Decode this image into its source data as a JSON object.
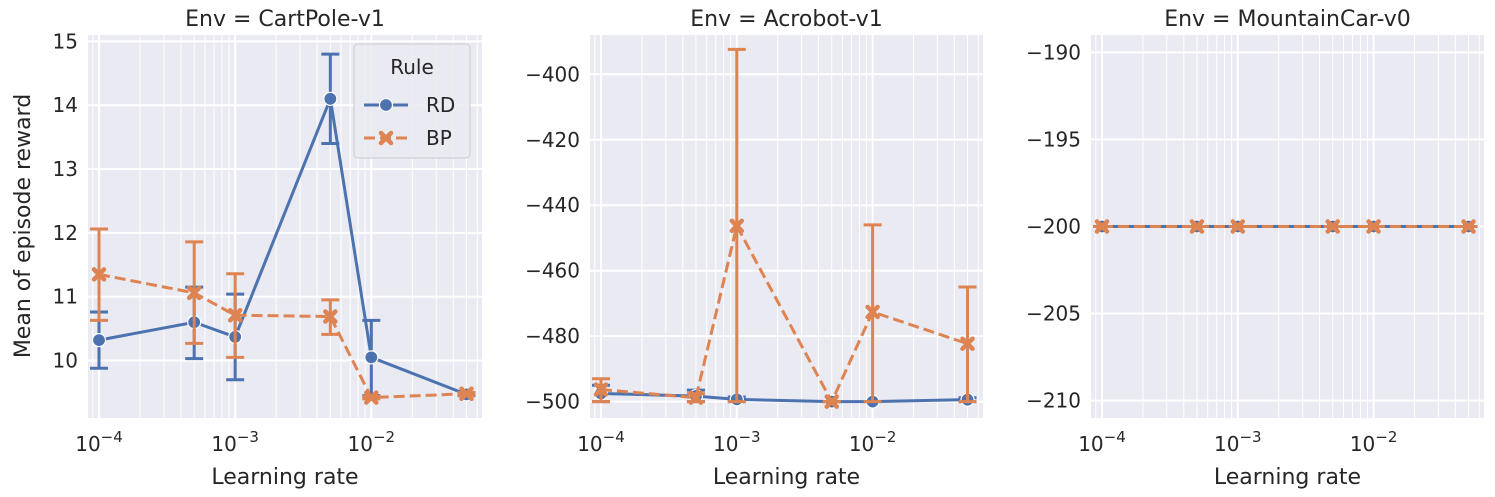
{
  "figure": {
    "ylabel": "Mean of episode reward",
    "xlabel": "Learning rate"
  },
  "legend": {
    "title": "Rule",
    "placement": "upper-right of first panel",
    "entries": [
      {
        "name": "RD",
        "color": "#4c72b0",
        "marker": "circle",
        "linestyle": "solid"
      },
      {
        "name": "BP",
        "color": "#dd8452",
        "marker": "x",
        "linestyle": "dashed"
      }
    ]
  },
  "chart_data": [
    {
      "type": "line",
      "title": "Env = CartPole-v1",
      "xlabel": "Learning rate",
      "ylabel": "Mean of episode reward",
      "xscale": "log",
      "xlim": [
        8.3e-05,
        0.065
      ],
      "ylim": [
        9.1,
        15.1
      ],
      "xticks": [
        {
          "value": 0.0001,
          "base": "10",
          "exp": "−4"
        },
        {
          "value": 0.001,
          "base": "10",
          "exp": "−3"
        },
        {
          "value": 0.01,
          "base": "10",
          "exp": "−2"
        }
      ],
      "yticks": [
        {
          "value": 10,
          "label": "10"
        },
        {
          "value": 11,
          "label": "11"
        },
        {
          "value": 12,
          "label": "12"
        },
        {
          "value": 13,
          "label": "13"
        },
        {
          "value": 14,
          "label": "14"
        },
        {
          "value": 15,
          "label": "15"
        }
      ],
      "grid": true,
      "series": [
        {
          "name": "RD",
          "x": [
            0.0001,
            0.0005,
            0.001,
            0.005,
            0.01,
            0.05
          ],
          "y": [
            10.32,
            10.6,
            10.37,
            14.1,
            10.05,
            9.47
          ],
          "err_low": [
            9.88,
            10.03,
            9.7,
            13.4,
            9.45,
            9.45
          ],
          "err_high": [
            10.76,
            11.15,
            11.04,
            14.8,
            10.63,
            9.49
          ]
        },
        {
          "name": "BP",
          "x": [
            0.0001,
            0.0005,
            0.001,
            0.005,
            0.01,
            0.05
          ],
          "y": [
            11.35,
            11.06,
            10.71,
            10.69,
            9.42,
            9.48
          ],
          "err_low": [
            10.63,
            10.27,
            10.05,
            10.41,
            9.4,
            9.46
          ],
          "err_high": [
            12.06,
            11.86,
            11.36,
            10.95,
            9.44,
            9.5
          ]
        }
      ]
    },
    {
      "type": "line",
      "title": "Env = Acrobot-v1",
      "xlabel": "Learning rate",
      "ylabel": "",
      "xscale": "log",
      "xlim": [
        8.3e-05,
        0.065
      ],
      "ylim": [
        -505,
        -388
      ],
      "xticks": [
        {
          "value": 0.0001,
          "base": "10",
          "exp": "−4"
        },
        {
          "value": 0.001,
          "base": "10",
          "exp": "−3"
        },
        {
          "value": 0.01,
          "base": "10",
          "exp": "−2"
        }
      ],
      "yticks": [
        {
          "value": -500,
          "label": "−500"
        },
        {
          "value": -480,
          "label": "−480"
        },
        {
          "value": -460,
          "label": "−460"
        },
        {
          "value": -440,
          "label": "−440"
        },
        {
          "value": -420,
          "label": "−420"
        },
        {
          "value": -400,
          "label": "−400"
        }
      ],
      "grid": true,
      "series": [
        {
          "name": "RD",
          "x": [
            0.0001,
            0.0005,
            0.001,
            0.005,
            0.01,
            0.05
          ],
          "y": [
            -497.5,
            -498.3,
            -499.3,
            -500,
            -500,
            -499.4
          ],
          "err_low": [
            -500,
            -500,
            -500,
            -500,
            -500,
            -500
          ],
          "err_high": [
            -495,
            -496.5,
            -498.6,
            -500,
            -500,
            -498.8
          ]
        },
        {
          "name": "BP",
          "x": [
            0.0001,
            0.0005,
            0.001,
            0.005,
            0.01,
            0.05
          ],
          "y": [
            -496.3,
            -498.8,
            -446.3,
            -500,
            -472.6,
            -482.3
          ],
          "err_low": [
            -500,
            -500,
            -500,
            -500,
            -500,
            -500
          ],
          "err_high": [
            -493,
            -497.6,
            -392.4,
            -500,
            -446,
            -465
          ]
        }
      ]
    },
    {
      "type": "line",
      "title": "Env = MountainCar-v0",
      "xlabel": "Learning rate",
      "ylabel": "",
      "xscale": "log",
      "xlim": [
        8.3e-05,
        0.065
      ],
      "ylim": [
        -211,
        -189
      ],
      "xticks": [
        {
          "value": 0.0001,
          "base": "10",
          "exp": "−4"
        },
        {
          "value": 0.001,
          "base": "10",
          "exp": "−3"
        },
        {
          "value": 0.01,
          "base": "10",
          "exp": "−2"
        }
      ],
      "yticks": [
        {
          "value": -210,
          "label": "−210"
        },
        {
          "value": -205,
          "label": "−205"
        },
        {
          "value": -200,
          "label": "−200"
        },
        {
          "value": -195,
          "label": "−195"
        },
        {
          "value": -190,
          "label": "−190"
        }
      ],
      "grid": true,
      "series": [
        {
          "name": "RD",
          "x": [
            0.0001,
            0.0005,
            0.001,
            0.005,
            0.01,
            0.05
          ],
          "y": [
            -200,
            -200,
            -200,
            -200,
            -200,
            -200
          ],
          "err_low": [
            -200,
            -200,
            -200,
            -200,
            -200,
            -200
          ],
          "err_high": [
            -200,
            -200,
            -200,
            -200,
            -200,
            -200
          ]
        },
        {
          "name": "BP",
          "x": [
            0.0001,
            0.0005,
            0.001,
            0.005,
            0.01,
            0.05
          ],
          "y": [
            -200,
            -200,
            -200,
            -200,
            -200,
            -200
          ],
          "err_low": [
            -200,
            -200,
            -200,
            -200,
            -200,
            -200
          ],
          "err_high": [
            -200,
            -200,
            -200,
            -200,
            -200,
            -200
          ]
        }
      ]
    }
  ]
}
